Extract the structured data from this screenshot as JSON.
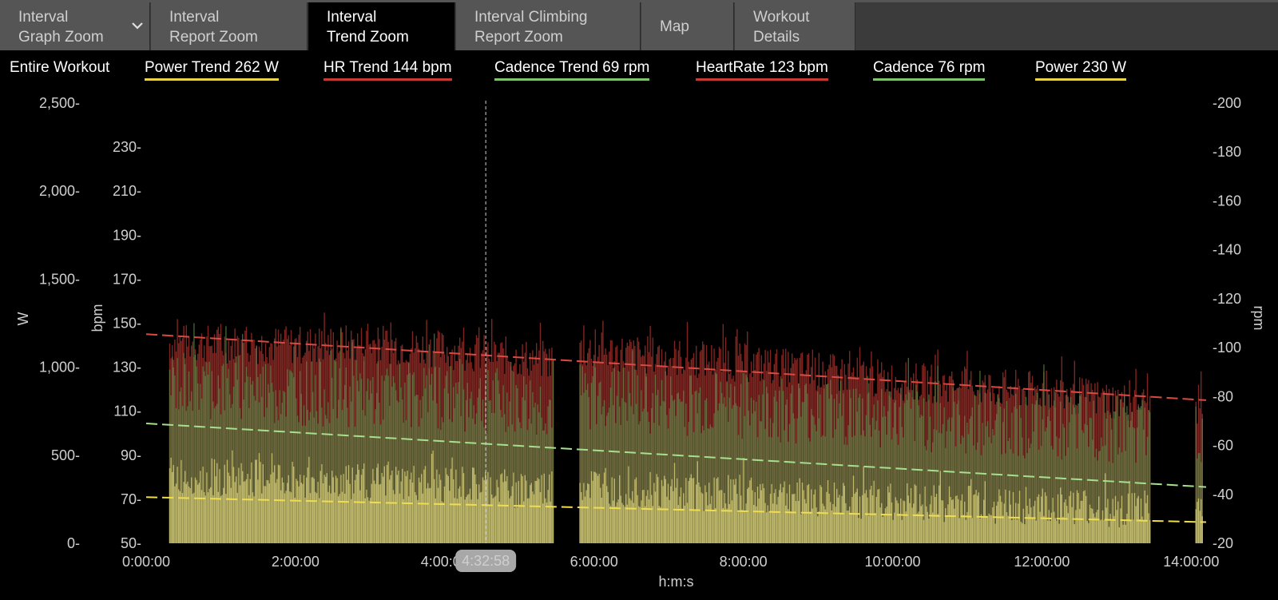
{
  "tabs": [
    {
      "line1": "Interval",
      "line2": "Graph Zoom",
      "has_dropdown": true,
      "active": false
    },
    {
      "line1": "Interval",
      "line2": "Report Zoom",
      "active": false
    },
    {
      "line1": "Interval",
      "line2": "Trend Zoom",
      "active": true
    },
    {
      "line1": "Interval Climbing",
      "line2": "Report Zoom",
      "active": false
    },
    {
      "line1": "Map",
      "line2": "",
      "active": false
    },
    {
      "line1": "Workout",
      "line2": "Details",
      "active": false
    }
  ],
  "legend": {
    "range_label": "Entire Workout",
    "items": [
      {
        "label": "Power Trend  262 W",
        "color": "#e8d34a"
      },
      {
        "label": "HR Trend  144 bpm",
        "color": "#c43b35"
      },
      {
        "label": "Cadence Trend  69 rpm",
        "color": "#7fc46a"
      },
      {
        "label": "HeartRate  123 bpm",
        "color": "#c43b35"
      },
      {
        "label": "Cadence  76 rpm",
        "color": "#7fc46a"
      },
      {
        "label": "Power  230 W",
        "color": "#e8d34a"
      }
    ]
  },
  "cursor": {
    "label": "4:32:58",
    "x_hours": 4.5494
  },
  "chart_data": {
    "type": "area",
    "xlabel": "h:m:s",
    "xlim_hours": [
      0,
      14.2
    ],
    "x_ticks": [
      "0:00:00",
      "2:00:00",
      "4:00:00",
      "6:00:00",
      "8:00:00",
      "10:00:00",
      "12:00:00",
      "14:00:00"
    ],
    "axes": {
      "power": {
        "label": "W",
        "ylim": [
          0,
          2500
        ],
        "ticks": [
          "0",
          "500",
          "1,000",
          "1,500",
          "2,000",
          "2,500"
        ],
        "tick_values": [
          0,
          500,
          1000,
          1500,
          2000,
          2500
        ]
      },
      "hr": {
        "label": "bpm",
        "ylim": [
          50,
          250
        ],
        "ticks": [
          "50",
          "70",
          "90",
          "110",
          "130",
          "150",
          "170",
          "190",
          "210",
          "230"
        ],
        "tick_values": [
          50,
          70,
          90,
          110,
          130,
          150,
          170,
          190,
          210,
          230
        ]
      },
      "cadence": {
        "label": "rpm",
        "ylim": [
          20,
          200
        ],
        "ticks": [
          "20",
          "40",
          "60",
          "80",
          "100",
          "120",
          "140",
          "160",
          "180",
          "200"
        ],
        "tick_values": [
          20,
          40,
          60,
          80,
          100,
          120,
          140,
          160,
          180,
          200
        ]
      }
    },
    "active_segments_hours": [
      [
        0.3,
        5.45
      ],
      [
        5.8,
        13.45
      ],
      [
        14.05,
        14.15
      ]
    ],
    "series": [
      {
        "name": "HeartRate",
        "axis": "hr",
        "color": "#b3352f",
        "style": "fill",
        "x_hours": [
          0.3,
          2.0,
          3.0,
          4.0,
          5.4,
          5.8,
          8.0,
          10.0,
          12.0,
          13.4
        ],
        "base": [
          141,
          140,
          141,
          138,
          133,
          138,
          132,
          124,
          119,
          113
        ],
        "amp": 9
      },
      {
        "name": "Cadence",
        "axis": "cadence",
        "color": "#5e8a4a",
        "style": "fill",
        "x_hours": [
          0.3,
          2.0,
          4.0,
          5.4,
          5.8,
          8.0,
          10.0,
          12.0,
          13.4
        ],
        "base": [
          86,
          82,
          80,
          76,
          80,
          76,
          72,
          68,
          66
        ],
        "amp": 14
      },
      {
        "name": "Power",
        "axis": "power",
        "color": "#d9d67a",
        "style": "fill",
        "x_hours": [
          0.3,
          2.0,
          4.0,
          5.4,
          5.8,
          8.0,
          10.0,
          12.0,
          13.4
        ],
        "base": [
          380,
          360,
          330,
          300,
          330,
          280,
          240,
          210,
          190
        ],
        "amp": 110
      },
      {
        "name": "HR Trend",
        "axis": "hr",
        "color": "#d94a42",
        "style": "dash",
        "x_hours": [
          0.0,
          14.2
        ],
        "y": [
          145,
          115
        ]
      },
      {
        "name": "Cadence Trend",
        "axis": "cadence",
        "color": "#a6e08f",
        "style": "dash",
        "x_hours": [
          0.0,
          14.2
        ],
        "y": [
          69,
          43
        ]
      },
      {
        "name": "Power Trend",
        "axis": "power",
        "color": "#f0dc50",
        "style": "dash",
        "x_hours": [
          0.0,
          14.2
        ],
        "y": [
          262,
          120
        ]
      }
    ]
  }
}
